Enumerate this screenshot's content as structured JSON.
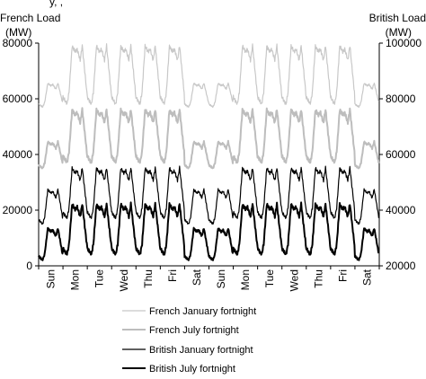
{
  "chart_data": {
    "type": "line",
    "title": "",
    "subtitle_fragment": "y, ,",
    "left_axis": {
      "label_line1": "French Load",
      "label_line2": "(MW)",
      "ticks": [
        "0",
        "20000",
        "40000",
        "60000",
        "80000"
      ],
      "ylim": [
        0,
        80000
      ]
    },
    "right_axis": {
      "label_line1": "British Load",
      "label_line2": "(MW)",
      "ticks": [
        "20000",
        "40000",
        "60000",
        "80000",
        "100000"
      ],
      "ylim": [
        20000,
        100000
      ]
    },
    "x_days": [
      "Sun",
      "Mon",
      "Tue",
      "Wed",
      "Thu",
      "Fri",
      "Sat",
      "Sun",
      "Mon",
      "Tue",
      "Wed",
      "Thu",
      "Fri",
      "Sat"
    ],
    "grid": false,
    "legend_position": "bottom",
    "series": [
      {
        "name": "French January fortnight",
        "axis": "left",
        "color": "#c8c8c8",
        "weekday_profile": {
          "min": 58000,
          "max": 80000
        },
        "weekend_profile": {
          "min": 57000,
          "max": 66000
        }
      },
      {
        "name": "French July fortnight",
        "axis": "left",
        "color": "#bdbdbd",
        "weekday_profile": {
          "min": 37000,
          "max": 57000
        },
        "weekend_profile": {
          "min": 35000,
          "max": 45000
        }
      },
      {
        "name": "British January fortnight",
        "axis": "right",
        "color": "#000000",
        "weekday_profile": {
          "min": 37000,
          "max": 56000
        },
        "weekend_profile": {
          "min": 35000,
          "max": 48000
        }
      },
      {
        "name": "British July fortnight",
        "axis": "right",
        "color": "#000000",
        "weekday_profile": {
          "min": 24000,
          "max": 43000
        },
        "weekend_profile": {
          "min": 22000,
          "max": 34000
        }
      }
    ]
  }
}
